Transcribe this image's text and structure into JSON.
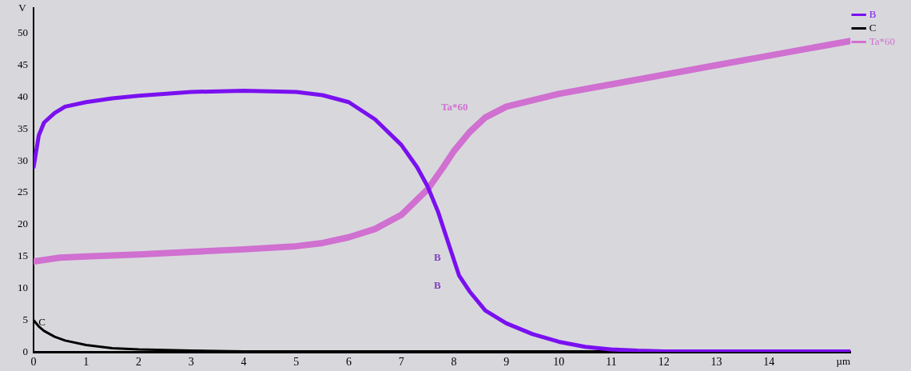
{
  "chart_data": {
    "type": "line",
    "xlabel": "µm",
    "ylabel": "V",
    "xlim": [
      0,
      15.55
    ],
    "xticks": [
      0,
      1,
      2,
      3,
      4,
      5,
      6,
      7,
      8,
      9,
      10,
      11,
      12,
      13,
      14
    ],
    "ylim": [
      0,
      54
    ],
    "yticks": [
      0,
      5,
      10,
      15,
      20,
      25,
      30,
      35,
      40,
      45,
      50
    ],
    "grid": false,
    "legend": "top right",
    "marker": "none",
    "line_style": "solid",
    "annotations": [
      "C",
      "Ta*60",
      "B",
      "B"
    ],
    "series": [
      {
        "name": "B",
        "color": "#7a10f0",
        "x": [
          0,
          0.1,
          0.2,
          0.4,
          0.6,
          1,
          1.5,
          2,
          3,
          4,
          5,
          5.5,
          6,
          6.5,
          7,
          7.3,
          7.5,
          7.7,
          7.9,
          8.1,
          8.3,
          8.6,
          9,
          9.5,
          10,
          10.5,
          11,
          11.5,
          12,
          15.55
        ],
        "values": [
          29,
          34,
          36,
          37.5,
          38.5,
          39.2,
          39.8,
          40.2,
          40.8,
          41,
          40.8,
          40.3,
          39.2,
          36.5,
          32.5,
          29,
          26,
          22,
          17,
          12,
          9.5,
          6.5,
          4.5,
          2.8,
          1.6,
          0.8,
          0.4,
          0.2,
          0.1,
          0.1
        ]
      },
      {
        "name": "C",
        "color": "#000000",
        "x": [
          0,
          0.1,
          0.2,
          0.4,
          0.6,
          1,
          1.5,
          2,
          3,
          4,
          15.55
        ],
        "values": [
          5,
          4,
          3.3,
          2.4,
          1.8,
          1.1,
          0.6,
          0.4,
          0.2,
          0.1,
          0.1
        ]
      },
      {
        "name": "Ta*60",
        "color": "#d070d0",
        "x": [
          0,
          0.5,
          1,
          2,
          3,
          4,
          5,
          5.5,
          6,
          6.5,
          7,
          7.5,
          7.8,
          8,
          8.3,
          8.6,
          9,
          9.5,
          10,
          11,
          12,
          13,
          14,
          15.55
        ],
        "values": [
          14.2,
          14.8,
          15,
          15.3,
          15.7,
          16.1,
          16.6,
          17.1,
          18,
          19.3,
          21.5,
          25.5,
          29,
          31.5,
          34.5,
          36.8,
          38.5,
          39.5,
          40.5,
          42,
          43.5,
          45,
          46.5,
          48.8
        ]
      }
    ]
  }
}
